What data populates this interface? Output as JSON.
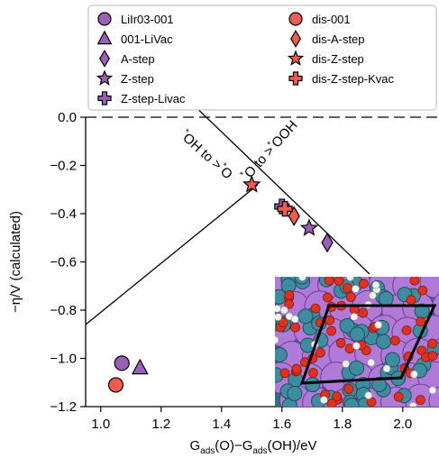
{
  "chart_data": {
    "type": "scatter",
    "xlabel_parts": [
      "G",
      "ads",
      "(O)−G",
      "ads",
      "(OH)/eV"
    ],
    "ylabel": "−η/V (calculated)",
    "xlim": [
      0.95,
      2.12
    ],
    "ylim": [
      -1.2,
      0.0
    ],
    "xticks": [
      1.0,
      1.2,
      1.4,
      1.6,
      1.8,
      2.0
    ],
    "xtick_labels": [
      "1.0",
      "1.2",
      "1.4",
      "1.6",
      "1.8",
      "2.0"
    ],
    "yticks": [
      0.0,
      -0.2,
      -0.4,
      -0.6,
      -0.8,
      -1.0,
      -1.2
    ],
    "ytick_labels": [
      "0.0",
      "−0.2",
      "−0.4",
      "−0.6",
      "−0.8",
      "−1.0",
      "−1.2"
    ],
    "grid": false,
    "zero_line": {
      "y": 0.0,
      "style": "dashed"
    },
    "volcano_lines": [
      {
        "label": "*OH to >*O",
        "points": [
          [
            0.95,
            -0.86
          ],
          [
            1.52,
            -0.28
          ]
        ]
      },
      {
        "label": "*O to >*OOH",
        "points": [
          [
            1.05,
            0.36
          ],
          [
            1.89,
            -0.65
          ]
        ]
      }
    ],
    "annotations": [
      {
        "text_parts": [
          "*",
          "OH to >",
          "*",
          "O"
        ],
        "text": "*OH to >*O",
        "x": 1.34,
        "y": -0.17,
        "angle_deg": 42
      },
      {
        "text_parts": [
          "*",
          "O to >",
          "*",
          "OOH"
        ],
        "text": "*O to >*OOH",
        "x": 1.57,
        "y": -0.15,
        "angle_deg": -48
      }
    ],
    "series": [
      {
        "name": "LiIr03-001",
        "marker": "circle",
        "color": "#9b5fb5",
        "points": [
          [
            1.07,
            -1.02
          ]
        ]
      },
      {
        "name": "001-LiVac",
        "marker": "triangle",
        "color": "#9b5fb5",
        "points": [
          [
            1.13,
            -1.04
          ]
        ]
      },
      {
        "name": "A-step",
        "marker": "diamond",
        "color": "#9b5fb5",
        "points": [
          [
            1.75,
            -0.52
          ]
        ]
      },
      {
        "name": "Z-step",
        "marker": "star",
        "color": "#9b5fb5",
        "points": [
          [
            1.69,
            -0.46
          ]
        ]
      },
      {
        "name": "Z-step-Livac",
        "marker": "plus",
        "color": "#9b5fb5",
        "points": [
          [
            1.6,
            -0.37
          ]
        ]
      },
      {
        "name": "dis-001",
        "marker": "circle",
        "color": "#f05a4f",
        "points": [
          [
            1.05,
            -1.11
          ]
        ]
      },
      {
        "name": "dis-A-step",
        "marker": "diamond",
        "color": "#f05a4f",
        "points": [
          [
            1.64,
            -0.41
          ]
        ]
      },
      {
        "name": "dis-Z-step",
        "marker": "star",
        "color": "#f05a4f",
        "points": [
          [
            1.5,
            -0.28
          ]
        ]
      },
      {
        "name": "dis-Z-step-Kvac",
        "marker": "plus",
        "color": "#f05a4f",
        "points": [
          [
            1.61,
            -0.38
          ]
        ]
      }
    ],
    "legend": {
      "placement": "top",
      "columns": [
        [
          "LiIr03-001",
          "001-LiVac",
          "A-step",
          "Z-step",
          "Z-step-Livac"
        ],
        [
          "dis-001",
          "dis-A-step",
          "dis-Z-step",
          "dis-Z-step-Kvac"
        ]
      ]
    },
    "inset": {
      "placement": "bottom-right",
      "description_colors": {
        "purple": "#b07ad8",
        "teal": "#3e8c9f",
        "red": "#e0301e",
        "white": "#f2f2f2"
      }
    }
  }
}
